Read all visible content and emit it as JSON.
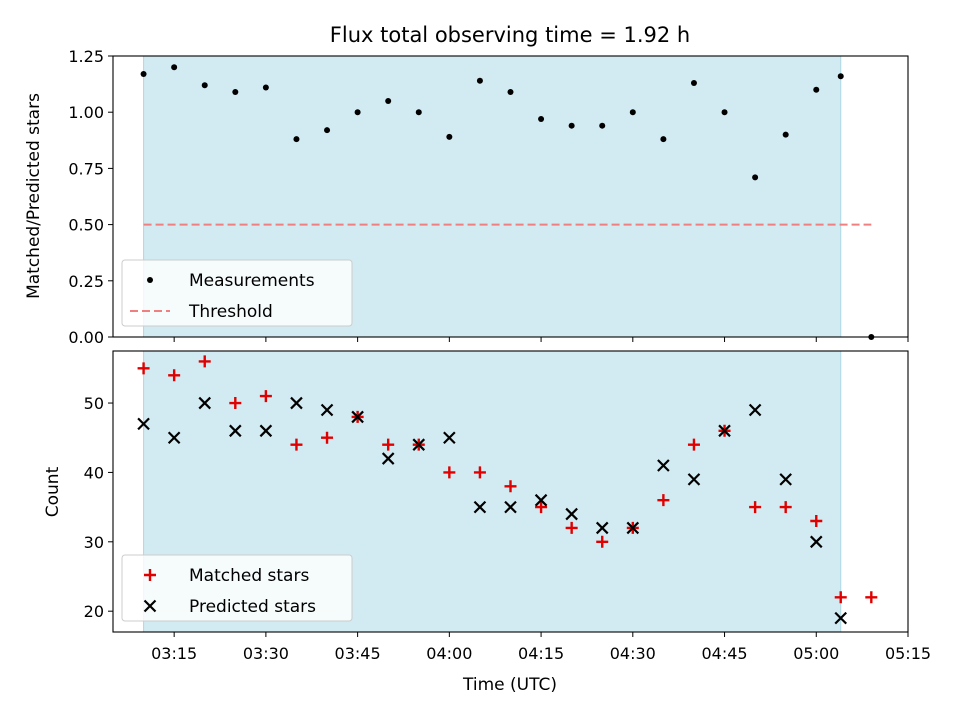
{
  "chart_data": [
    {
      "type": "scatter",
      "title": "Flux total observing time = 1.92 h",
      "xlabel": "",
      "ylabel": "Matched/Predicted stars",
      "xlim": [
        "03:05",
        "05:15"
      ],
      "ylim": [
        0,
        1.25
      ],
      "yticks": [
        "0.00",
        "0.25",
        "0.50",
        "0.75",
        "1.00",
        "1.25"
      ],
      "grid": false,
      "legend_position": "lower-left",
      "observing_span": {
        "start": "03:10",
        "end": "05:04",
        "color": "#add8e6"
      },
      "series": [
        {
          "name": "Measurements",
          "marker": "dot",
          "color": "#000000",
          "x": [
            "03:10",
            "03:15",
            "03:20",
            "03:25",
            "03:30",
            "03:35",
            "03:40",
            "03:45",
            "03:50",
            "03:55",
            "04:00",
            "04:05",
            "04:10",
            "04:15",
            "04:20",
            "04:25",
            "04:30",
            "04:35",
            "04:40",
            "04:45",
            "04:50",
            "04:55",
            "05:00",
            "05:04",
            "05:09"
          ],
          "y": [
            1.17,
            1.2,
            1.12,
            1.09,
            1.11,
            0.88,
            0.92,
            1.0,
            1.05,
            1.0,
            0.89,
            1.14,
            1.09,
            0.97,
            0.94,
            0.94,
            1.0,
            0.88,
            1.13,
            1.0,
            0.71,
            0.9,
            1.1,
            1.16,
            0.0
          ]
        },
        {
          "name": "Threshold",
          "marker": "dashed-line",
          "color": "#f08080",
          "x": [
            "03:10",
            "05:09"
          ],
          "y": [
            0.5,
            0.5
          ]
        }
      ]
    },
    {
      "type": "scatter",
      "title": "",
      "xlabel": "Time (UTC)",
      "ylabel": "Count",
      "xlim": [
        "03:05",
        "05:15"
      ],
      "ylim": [
        17,
        57.5
      ],
      "xticks": [
        "03:15",
        "03:30",
        "03:45",
        "04:00",
        "04:15",
        "04:30",
        "04:45",
        "05:00",
        "05:15"
      ],
      "yticks": [
        "20",
        "30",
        "40",
        "50"
      ],
      "grid": false,
      "legend_position": "lower-left",
      "observing_span": {
        "start": "03:10",
        "end": "05:04",
        "color": "#add8e6"
      },
      "series": [
        {
          "name": "Matched stars",
          "marker": "plus",
          "color": "#e00000",
          "x": [
            "03:10",
            "03:15",
            "03:20",
            "03:25",
            "03:30",
            "03:35",
            "03:40",
            "03:45",
            "03:50",
            "03:55",
            "04:00",
            "04:05",
            "04:10",
            "04:15",
            "04:20",
            "04:25",
            "04:30",
            "04:35",
            "04:40",
            "04:45",
            "04:50",
            "04:55",
            "05:00",
            "05:04",
            "05:09"
          ],
          "y": [
            55,
            54,
            56,
            50,
            51,
            44,
            45,
            48,
            44,
            44,
            40,
            40,
            38,
            35,
            32,
            30,
            32,
            36,
            44,
            46,
            35,
            35,
            33,
            22,
            22
          ]
        },
        {
          "name": "Predicted stars",
          "marker": "x",
          "color": "#000000",
          "x": [
            "03:10",
            "03:15",
            "03:20",
            "03:25",
            "03:30",
            "03:35",
            "03:40",
            "03:45",
            "03:50",
            "03:55",
            "04:00",
            "04:05",
            "04:10",
            "04:15",
            "04:20",
            "04:25",
            "04:30",
            "04:35",
            "04:40",
            "04:45",
            "04:50",
            "04:55",
            "05:00",
            "05:04"
          ],
          "y": [
            47,
            45,
            50,
            46,
            46,
            50,
            49,
            48,
            42,
            44,
            45,
            35,
            35,
            36,
            34,
            32,
            32,
            41,
            39,
            46,
            49,
            39,
            30,
            19
          ]
        }
      ]
    }
  ]
}
